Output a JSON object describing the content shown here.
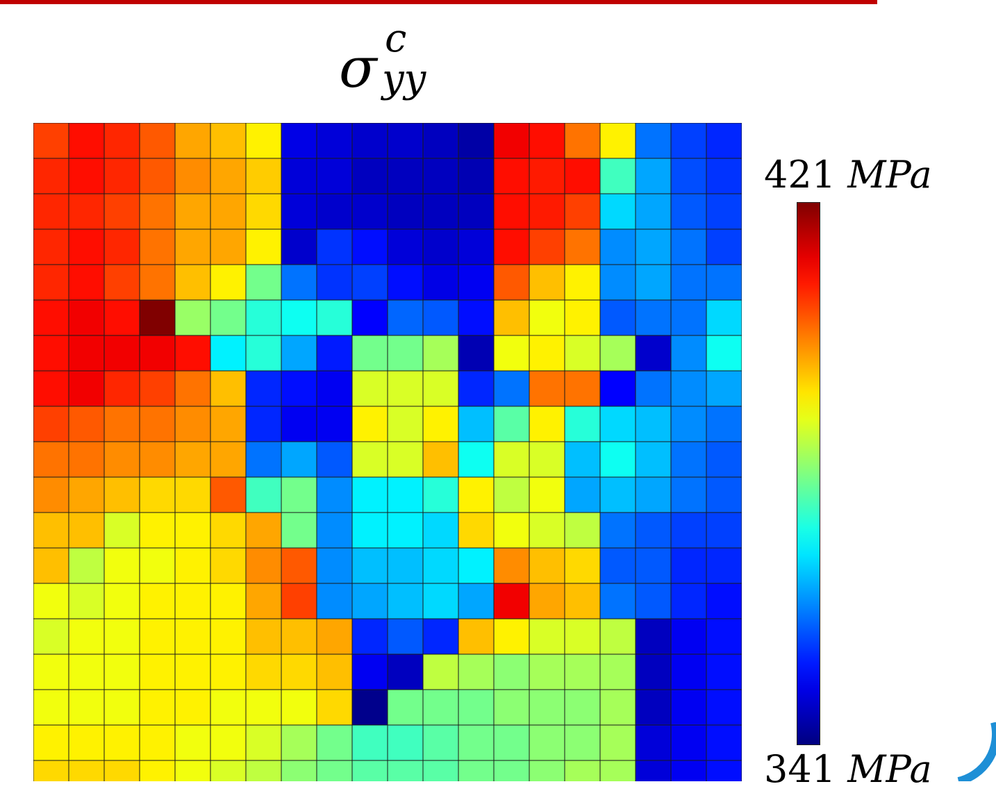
{
  "chart_data": {
    "type": "heatmap",
    "title": {
      "base": "σ",
      "superscript": "c",
      "subscript": "yy"
    },
    "colormap": "jet",
    "colorbar": {
      "max_label_value": "421",
      "min_label_value": "341",
      "unit": "MPa",
      "vmin": 341,
      "vmax": 421
    },
    "rows": 19,
    "cols": 20,
    "values": [
      [
        406,
        410,
        408,
        404,
        398,
        396,
        392,
        349,
        348,
        347,
        347,
        346,
        344,
        412,
        410,
        402,
        392,
        360,
        356,
        354
      ],
      [
        408,
        410,
        408,
        404,
        400,
        398,
        395,
        348,
        348,
        346,
        346,
        346,
        345,
        410,
        409,
        410,
        376,
        364,
        357,
        355
      ],
      [
        408,
        408,
        406,
        402,
        398,
        398,
        394,
        348,
        347,
        347,
        346,
        346,
        346,
        410,
        409,
        406,
        368,
        364,
        358,
        356
      ],
      [
        408,
        410,
        408,
        402,
        398,
        398,
        392,
        347,
        355,
        352,
        348,
        347,
        348,
        410,
        406,
        402,
        362,
        364,
        360,
        356
      ],
      [
        408,
        410,
        406,
        402,
        396,
        392,
        380,
        360,
        355,
        356,
        352,
        349,
        350,
        404,
        396,
        392,
        362,
        364,
        360,
        360
      ],
      [
        410,
        412,
        410,
        421,
        383,
        380,
        374,
        372,
        374,
        351,
        359,
        358,
        352,
        396,
        390,
        392,
        358,
        360,
        360,
        368
      ],
      [
        410,
        412,
        412,
        412,
        410,
        370,
        374,
        364,
        353,
        380,
        380,
        384,
        345,
        390,
        392,
        388,
        384,
        347,
        362,
        372
      ],
      [
        410,
        412,
        408,
        406,
        402,
        396,
        354,
        352,
        350,
        388,
        388,
        388,
        354,
        360,
        402,
        402,
        351,
        360,
        362,
        364
      ],
      [
        406,
        404,
        402,
        402,
        400,
        398,
        354,
        350,
        350,
        392,
        388,
        392,
        366,
        378,
        392,
        374,
        368,
        366,
        362,
        360
      ],
      [
        402,
        402,
        400,
        400,
        398,
        398,
        360,
        364,
        358,
        388,
        388,
        396,
        372,
        388,
        388,
        366,
        372,
        366,
        360,
        358
      ],
      [
        400,
        398,
        396,
        394,
        394,
        404,
        376,
        380,
        362,
        370,
        370,
        374,
        392,
        386,
        390,
        364,
        366,
        364,
        360,
        358
      ],
      [
        396,
        396,
        388,
        392,
        392,
        394,
        398,
        380,
        362,
        370,
        370,
        368,
        394,
        390,
        388,
        386,
        360,
        358,
        356,
        356
      ],
      [
        396,
        386,
        390,
        390,
        392,
        394,
        400,
        404,
        362,
        366,
        366,
        368,
        370,
        400,
        396,
        394,
        358,
        358,
        354,
        354
      ],
      [
        390,
        388,
        390,
        392,
        392,
        392,
        398,
        406,
        362,
        364,
        366,
        368,
        364,
        412,
        398,
        396,
        360,
        358,
        354,
        352
      ],
      [
        388,
        390,
        390,
        392,
        392,
        392,
        396,
        396,
        398,
        354,
        358,
        354,
        396,
        392,
        388,
        388,
        386,
        346,
        350,
        352
      ],
      [
        390,
        390,
        390,
        392,
        392,
        392,
        394,
        394,
        396,
        350,
        346,
        386,
        384,
        382,
        384,
        384,
        384,
        346,
        350,
        352
      ],
      [
        390,
        390,
        390,
        392,
        392,
        390,
        390,
        390,
        394,
        342,
        380,
        380,
        380,
        382,
        382,
        382,
        384,
        346,
        350,
        352
      ],
      [
        392,
        392,
        392,
        392,
        390,
        390,
        388,
        384,
        380,
        376,
        376,
        378,
        380,
        380,
        382,
        382,
        384,
        348,
        350,
        352
      ],
      [
        394,
        394,
        394,
        392,
        390,
        388,
        386,
        382,
        380,
        378,
        378,
        378,
        380,
        380,
        382,
        384,
        384,
        348,
        350,
        352
      ]
    ]
  }
}
